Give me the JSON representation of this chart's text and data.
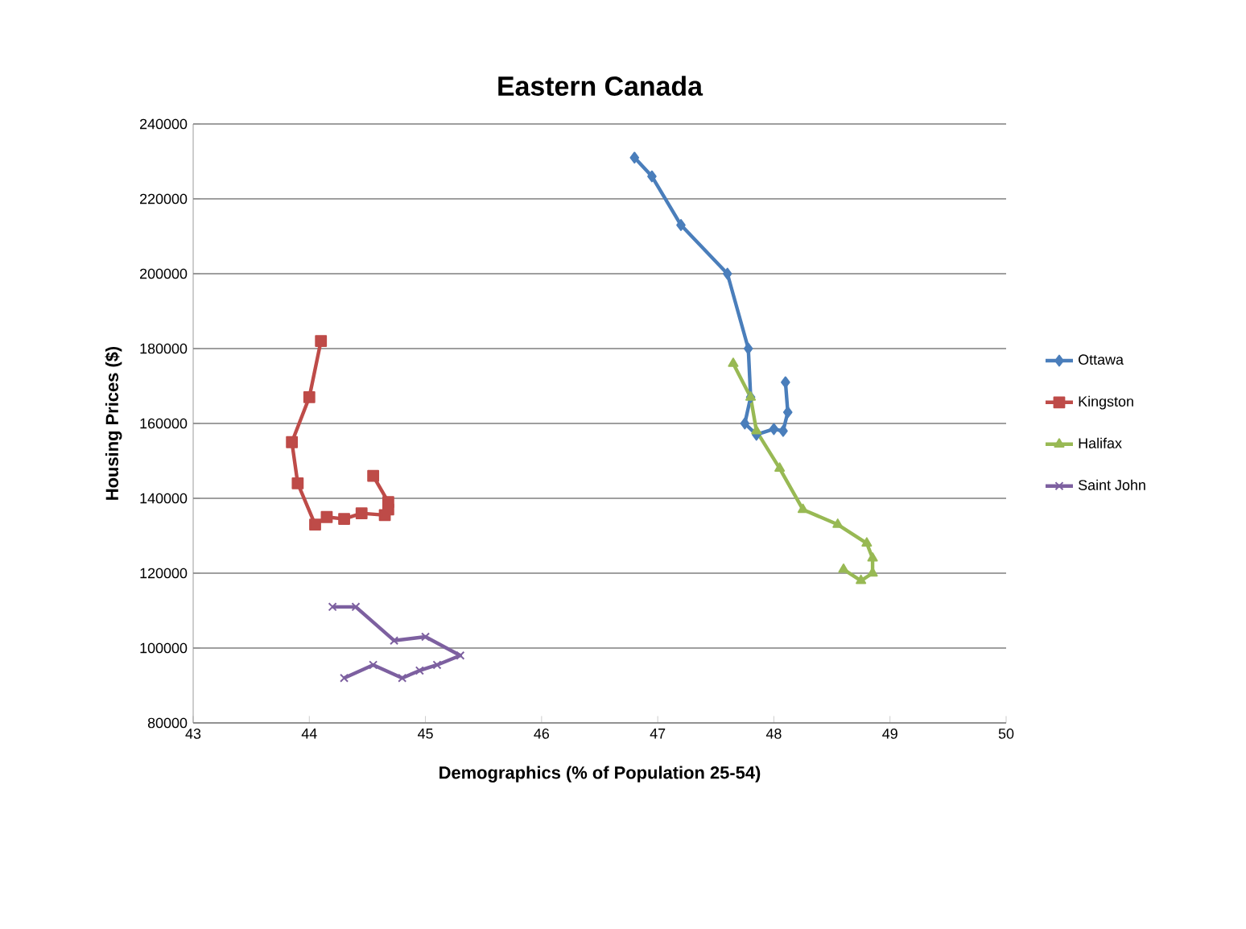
{
  "chart_data": {
    "type": "line",
    "title": "Eastern Canada",
    "xlabel": "Demographics (% of Population 25-54)",
    "ylabel": "Housing Prices ($)",
    "xlim": [
      43,
      50
    ],
    "xticks": [
      43,
      44,
      45,
      46,
      47,
      48,
      49,
      50
    ],
    "ylim": [
      80000,
      240000
    ],
    "yticks": [
      80000,
      100000,
      120000,
      140000,
      160000,
      180000,
      200000,
      220000,
      240000
    ],
    "grid": "y",
    "legend": "right",
    "series": [
      {
        "name": "Ottawa",
        "color": "#4a7ebb",
        "marker": "diamond",
        "x": [
          46.8,
          46.95,
          47.2,
          47.6,
          47.78,
          47.8,
          47.75,
          47.85,
          48.0,
          48.08,
          48.12,
          48.1
        ],
        "values": [
          231000,
          226000,
          213000,
          200000,
          180000,
          167000,
          160000,
          157000,
          158500,
          158000,
          163000,
          171000
        ]
      },
      {
        "name": "Kingston",
        "color": "#be4b48",
        "marker": "square",
        "x": [
          44.1,
          44.0,
          43.85,
          43.9,
          44.05,
          44.15,
          44.3,
          44.45,
          44.65,
          44.68,
          44.68,
          44.55
        ],
        "values": [
          182000,
          167000,
          155000,
          144000,
          133000,
          135000,
          134500,
          136000,
          135500,
          137000,
          139000,
          146000
        ]
      },
      {
        "name": "Halifax",
        "color": "#98b954",
        "marker": "triangle",
        "x": [
          47.65,
          47.8,
          47.85,
          48.05,
          48.25,
          48.55,
          48.8,
          48.85,
          48.85,
          48.75,
          48.6
        ],
        "values": [
          176000,
          167000,
          158000,
          148000,
          137000,
          133000,
          128000,
          124000,
          120000,
          118000,
          121000
        ]
      },
      {
        "name": "Saint John",
        "color": "#7d60a0",
        "marker": "cross",
        "x": [
          44.2,
          44.4,
          44.73,
          45.0,
          45.3,
          45.1,
          44.95,
          44.8,
          44.55,
          44.3
        ],
        "values": [
          111000,
          111000,
          102000,
          103000,
          98000,
          95500,
          94000,
          92000,
          95500,
          92000
        ]
      }
    ]
  }
}
